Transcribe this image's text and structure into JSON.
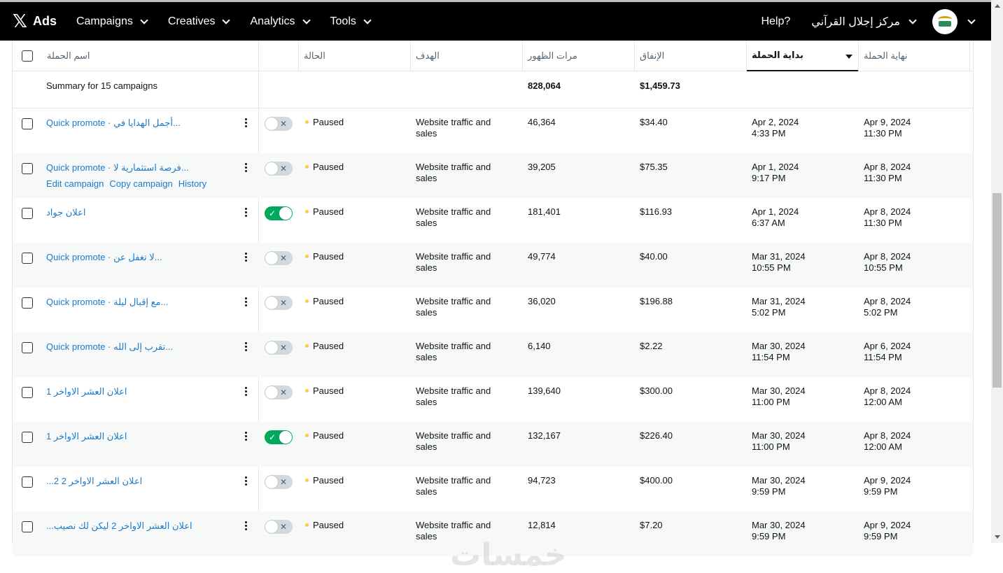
{
  "header": {
    "logo": "𝕏",
    "brand": "Ads",
    "nav": [
      {
        "label": "Campaigns"
      },
      {
        "label": "Creatives"
      },
      {
        "label": "Analytics"
      },
      {
        "label": "Tools"
      }
    ],
    "help": "Help?",
    "account": "مركز إجلال القرآني"
  },
  "columns": {
    "name": "اسم الحملة",
    "status": "الحالة",
    "objective": "الهدف",
    "impressions": "مرات الظهور",
    "spend": "الإنفاق",
    "start": "بداية الحملة",
    "end": "نهاية الحملة"
  },
  "summary": {
    "label": "Summary for 15 campaigns",
    "impressions": "828,064",
    "spend": "$1,459.73"
  },
  "row_actions": {
    "edit": "Edit campaign",
    "copy": "Copy campaign",
    "history": "History"
  },
  "rows": [
    {
      "name": "Quick promote · أجمل الهدايا في...",
      "on": false,
      "status": "Paused",
      "obj1": "Website traffic and",
      "obj2": "sales",
      "impressions": "46,364",
      "spend": "$34.40",
      "start1": "Apr 2, 2024",
      "start2": "4:33 PM",
      "end1": "Apr 9, 2024",
      "end2": "11:30 PM"
    },
    {
      "name": "Quick promote · فرصة استثمارية لا...",
      "on": false,
      "status": "Paused",
      "obj1": "Website traffic and",
      "obj2": "sales",
      "impressions": "39,205",
      "spend": "$75.35",
      "start1": "Apr 1, 2024",
      "start2": "9:17 PM",
      "end1": "Apr 8, 2024",
      "end2": "11:30 PM"
    },
    {
      "name": "اعلان جواد",
      "on": true,
      "status": "Paused",
      "obj1": "Website traffic and",
      "obj2": "sales",
      "impressions": "181,401",
      "spend": "$116.93",
      "start1": "Apr 1, 2024",
      "start2": "6:37 AM",
      "end1": "Apr 8, 2024",
      "end2": "11:30 PM"
    },
    {
      "name": "Quick promote · لا تغفل عن...",
      "on": false,
      "status": "Paused",
      "obj1": "Website traffic and",
      "obj2": "sales",
      "impressions": "49,774",
      "spend": "$40.00",
      "start1": "Mar 31, 2024",
      "start2": "10:55 PM",
      "end1": "Apr 8, 2024",
      "end2": "10:55 PM"
    },
    {
      "name": "Quick promote · مع إقبال ليلة...",
      "on": false,
      "status": "Paused",
      "obj1": "Website traffic and",
      "obj2": "sales",
      "impressions": "36,020",
      "spend": "$196.88",
      "start1": "Mar 31, 2024",
      "start2": "5:02 PM",
      "end1": "Apr 8, 2024",
      "end2": "5:02 PM"
    },
    {
      "name": "Quick promote · تقرب إلى الله...",
      "on": false,
      "status": "Paused",
      "obj1": "Website traffic and",
      "obj2": "sales",
      "impressions": "6,140",
      "spend": "$2.22",
      "start1": "Mar 30, 2024",
      "start2": "11:54 PM",
      "end1": "Apr 6, 2024",
      "end2": "11:54 PM"
    },
    {
      "name": "اعلان العشر الاواخر 1",
      "on": false,
      "status": "Paused",
      "obj1": "Website traffic and",
      "obj2": "sales",
      "impressions": "139,640",
      "spend": "$300.00",
      "start1": "Mar 30, 2024",
      "start2": "11:00 PM",
      "end1": "Apr 8, 2024",
      "end2": "12:00 AM"
    },
    {
      "name": "اعلان العشر الاواخر 1",
      "on": true,
      "status": "Paused",
      "obj1": "Website traffic and",
      "obj2": "sales",
      "impressions": "132,167",
      "spend": "$226.40",
      "start1": "Mar 30, 2024",
      "start2": "11:00 PM",
      "end1": "Apr 8, 2024",
      "end2": "12:00 AM"
    },
    {
      "name": "اعلان العشر الاواخر 2 2...",
      "on": false,
      "status": "Paused",
      "obj1": "Website traffic and",
      "obj2": "sales",
      "impressions": "94,723",
      "spend": "$400.00",
      "start1": "Mar 30, 2024",
      "start2": "9:59 PM",
      "end1": "Apr 9, 2024",
      "end2": "9:59 PM"
    },
    {
      "name": "اعلان العشر الاواخر 2 ليكن لك نصيب...",
      "on": false,
      "status": "Paused",
      "obj1": "Website traffic and",
      "obj2": "sales",
      "impressions": "12,814",
      "spend": "$7.20",
      "start1": "Mar 30, 2024",
      "start2": "9:59 PM",
      "end1": "Apr 9, 2024",
      "end2": "9:59 PM"
    }
  ],
  "watermark": "خمسات"
}
